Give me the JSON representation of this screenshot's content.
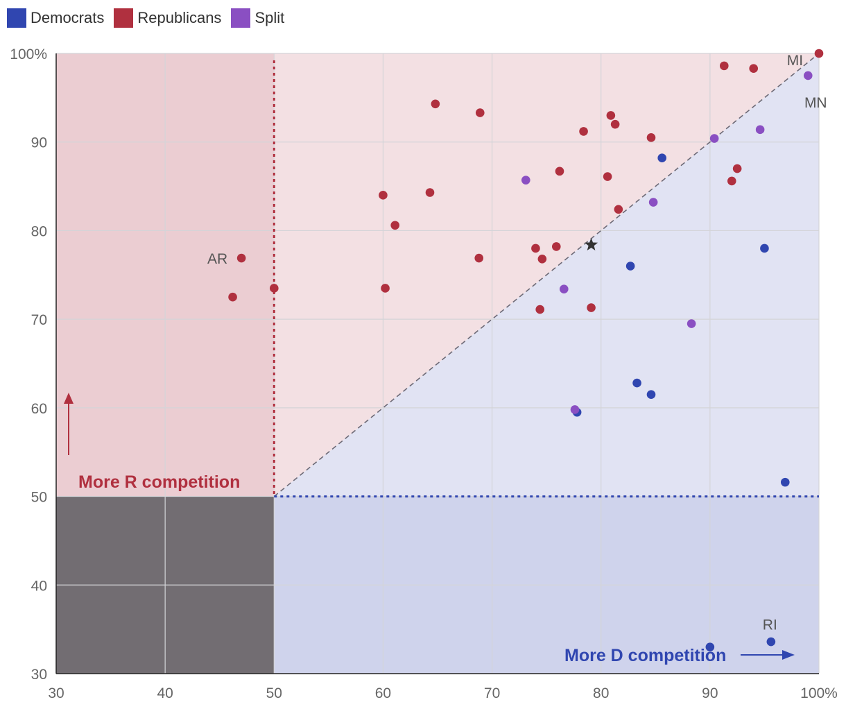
{
  "chart_data": {
    "type": "scatter",
    "legend": [
      {
        "name": "Democrats",
        "color": "#3046b0"
      },
      {
        "name": "Republicans",
        "color": "#b0303f"
      },
      {
        "name": "Split",
        "color": "#8a4fc2"
      }
    ],
    "xlim": [
      30,
      100
    ],
    "ylim": [
      30,
      100
    ],
    "x_ticks": [
      "30",
      "40",
      "50",
      "60",
      "70",
      "80",
      "90",
      "100%"
    ],
    "y_ticks": [
      "30",
      "40",
      "50",
      "60",
      "70",
      "80",
      "90",
      "100%"
    ],
    "grid": true,
    "annotations": {
      "more_r": "More R competition",
      "more_d": "More D competition"
    },
    "state_labels": [
      {
        "text": "AR",
        "x": 44.8,
        "y": 76.9
      },
      {
        "text": "MI",
        "x": 97.8,
        "y": 99.3
      },
      {
        "text": "MN",
        "x": 99.7,
        "y": 94.5
      },
      {
        "text": "RI",
        "x": 95.5,
        "y": 35.6
      }
    ],
    "star": {
      "x": 79.1,
      "y": 78.4
    },
    "series": [
      {
        "name": "Republicans",
        "color": "#b0303f",
        "points": [
          [
            47.0,
            76.9
          ],
          [
            46.2,
            72.5
          ],
          [
            50.0,
            73.5
          ],
          [
            60.0,
            84.0
          ],
          [
            61.1,
            80.6
          ],
          [
            60.2,
            73.5
          ],
          [
            64.3,
            84.3
          ],
          [
            64.8,
            94.3
          ],
          [
            68.9,
            93.3
          ],
          [
            68.8,
            76.9
          ],
          [
            74.0,
            78.0
          ],
          [
            74.6,
            76.8
          ],
          [
            74.4,
            71.1
          ],
          [
            75.9,
            78.2
          ],
          [
            76.2,
            86.7
          ],
          [
            78.4,
            91.2
          ],
          [
            79.1,
            71.3
          ],
          [
            80.6,
            86.1
          ],
          [
            80.9,
            93.0
          ],
          [
            81.3,
            92.0
          ],
          [
            81.6,
            82.4
          ],
          [
            84.6,
            90.5
          ],
          [
            92.0,
            85.6
          ],
          [
            92.5,
            87.0
          ],
          [
            91.3,
            98.6
          ],
          [
            94.0,
            98.3
          ],
          [
            100.0,
            100.0
          ]
        ]
      },
      {
        "name": "Democrats",
        "color": "#3046b0",
        "points": [
          [
            85.6,
            88.2
          ],
          [
            82.7,
            76.0
          ],
          [
            83.3,
            62.8
          ],
          [
            84.6,
            61.5
          ],
          [
            77.8,
            59.5
          ],
          [
            95.0,
            78.0
          ],
          [
            96.9,
            51.6
          ],
          [
            90.0,
            33.0
          ],
          [
            95.6,
            33.6
          ]
        ]
      },
      {
        "name": "Split",
        "color": "#8a4fc2",
        "points": [
          [
            73.1,
            85.7
          ],
          [
            76.6,
            73.4
          ],
          [
            84.8,
            83.2
          ],
          [
            77.6,
            59.8
          ],
          [
            88.3,
            69.5
          ],
          [
            90.4,
            90.4
          ],
          [
            94.6,
            91.4
          ],
          [
            99.0,
            97.5
          ]
        ]
      }
    ]
  }
}
